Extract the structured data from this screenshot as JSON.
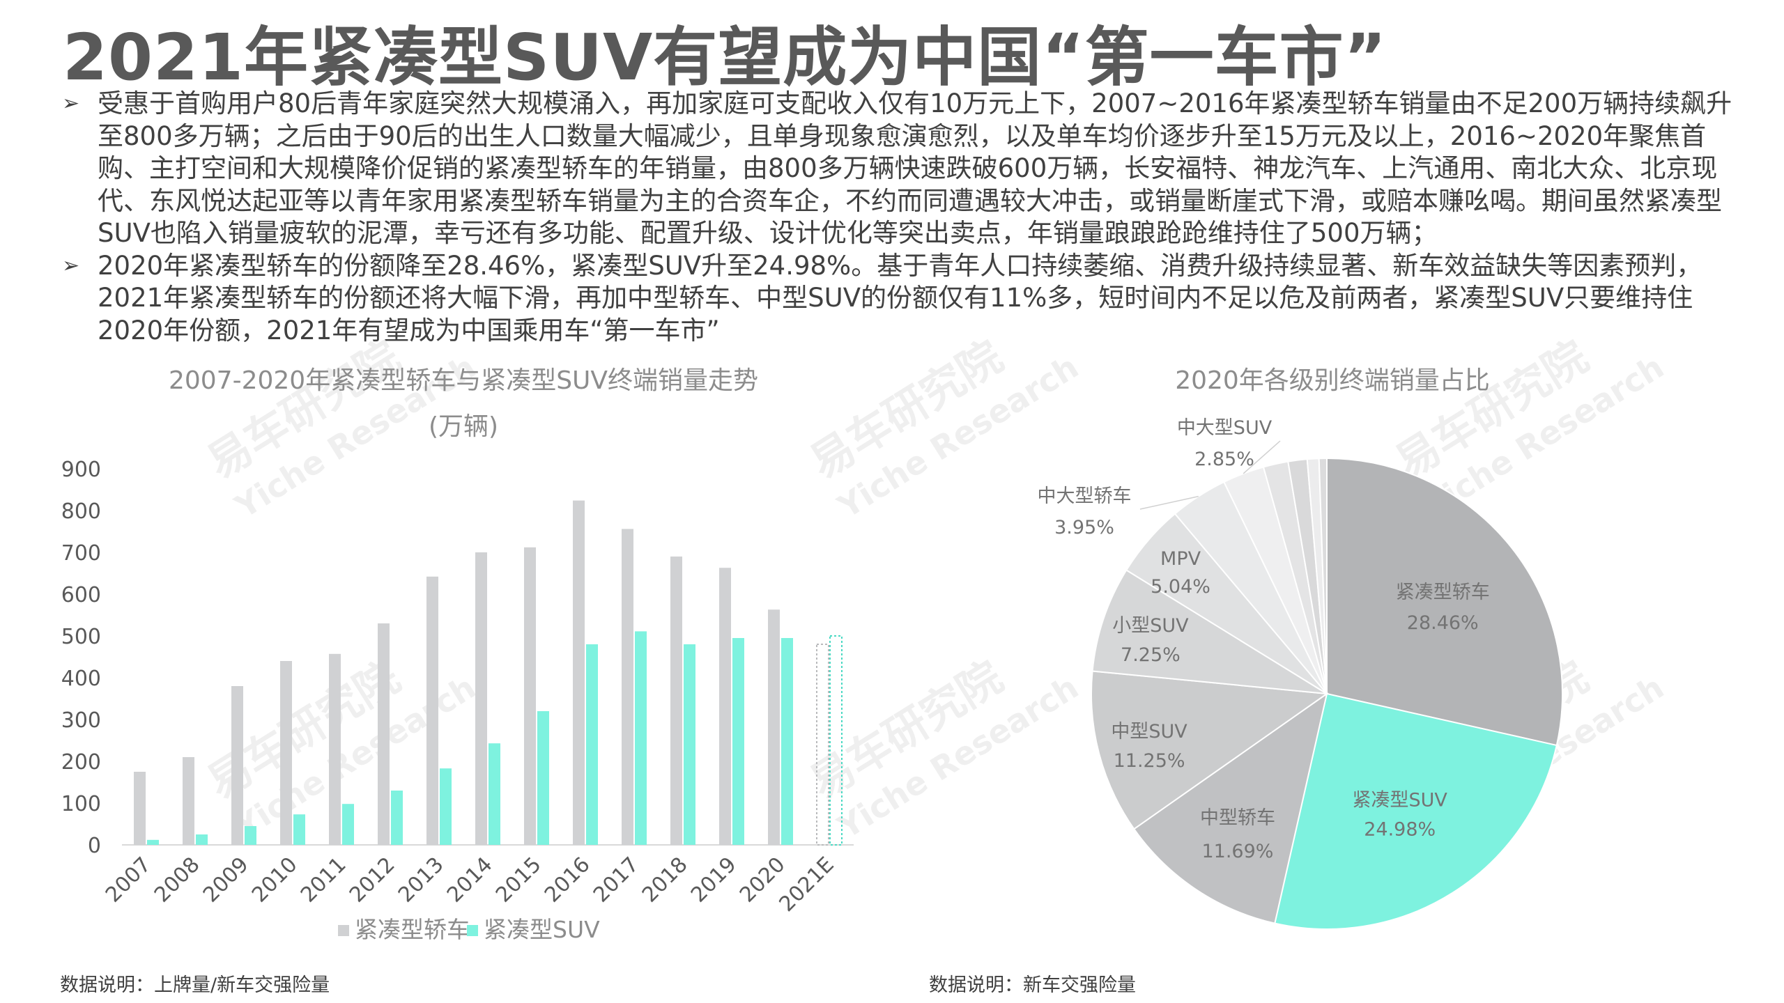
{
  "title": "2021年紧凑型SUV有望成为中国“第一车市”",
  "bullets": [
    "受惠于首购用户80后青年家庭突然大规模涌入，再加家庭可支配收入仅有10万元上下，2007~2016年紧凑型轿车销量由不足200万辆持续飙升至800多万辆；之后由于90后的出生人口数量大幅减少，且单身现象愈演愈烈，以及单车均价逐步升至15万元及以上，2016~2020年聚焦首购、主打空间和大规模降价促销的紧凑型轿车的年销量，由800多万辆快速跌破600万辆，长安福特、神龙汽车、上汽通用、南北大众、北京现代、东风悦达起亚等以青年家用紧凑型轿车销量为主的合资车企，不约而同遭遇较大冲击，或销量断崖式下滑，或赔本赚吆喝。期间虽然紧凑型SUV也陷入销量疲软的泥潭，幸亏还有多功能、配置升级、设计优化等突出卖点，年销量踉踉跄跄维持住了500万辆；",
    "2020年紧凑型轿车的份额降至28.46%，紧凑型SUV升至24.98%。基于青年人口持续萎缩、消费升级持续显著、新车效益缺失等因素预判，2021年紧凑型轿车的份额还将大幅下滑，再加中型轿车、中型SUV的份额仅有11%多，短时间内不足以危及前两者，紧凑型SUV只要维持住2020年份额，2021年有望成为中国乘用车“第一车市”"
  ],
  "watermark": {
    "cn": "易车研究院",
    "en": "Yiche Research"
  },
  "notes": {
    "left": "数据说明：上牌量/新车交强险量",
    "right": "数据说明：新车交强险量"
  },
  "colors": {
    "gray": "#d0d1d3",
    "teal": "#7ef2df",
    "title": "#595959"
  },
  "chart_data": [
    {
      "type": "bar",
      "title": "2007-2020年紧凑型轿车与紧凑型SUV终端销量走势",
      "subtitle": "(万辆)",
      "categories": [
        "2007",
        "2008",
        "2009",
        "2010",
        "2011",
        "2012",
        "2013",
        "2014",
        "2015",
        "2016",
        "2017",
        "2018",
        "2019",
        "2020",
        "2021E"
      ],
      "series": [
        {
          "name": "紧凑型轿车",
          "color": "#d0d1d3",
          "values": [
            175,
            210,
            380,
            440,
            457,
            530,
            642,
            700,
            712,
            824,
            756,
            690,
            663,
            563,
            480
          ]
        },
        {
          "name": "紧凑型SUV",
          "color": "#7ef2df",
          "values": [
            12,
            25,
            45,
            73,
            98,
            130,
            183,
            243,
            320,
            480,
            511,
            480,
            495,
            495,
            500
          ]
        }
      ],
      "projected_category": "2021E",
      "ylim": [
        0,
        900
      ],
      "yticks": [
        0,
        100,
        200,
        300,
        400,
        500,
        600,
        700,
        800,
        900
      ],
      "legend": "bottom",
      "grid": false
    },
    {
      "type": "pie",
      "title": "2020年各级别终端销量占比",
      "slices": [
        {
          "label": "紧凑型轿车",
          "value": 28.46,
          "display": "28.46%",
          "color": "#b3b4b6"
        },
        {
          "label": "紧凑型SUV",
          "value": 24.98,
          "display": "24.98%",
          "color": "#7ef2df"
        },
        {
          "label": "中型轿车",
          "value": 11.69,
          "display": "11.69%",
          "color": "#c0c1c3"
        },
        {
          "label": "中型SUV",
          "value": 11.25,
          "display": "11.25%",
          "color": "#cbcccd"
        },
        {
          "label": "小型SUV",
          "value": 7.25,
          "display": "7.25%",
          "color": "#d6d7d8"
        },
        {
          "label": "MPV",
          "value": 5.04,
          "display": "5.04%",
          "color": "#e0e1e2"
        },
        {
          "label": "中大型轿车",
          "value": 3.95,
          "display": "3.95%",
          "color": "#e9eaeb"
        },
        {
          "label": "中大型SUV",
          "value": 2.85,
          "display": "2.85%",
          "color": "#efeff0"
        },
        {
          "label": "",
          "value": 1.7,
          "color": "#e4e4e5"
        },
        {
          "label": "",
          "value": 1.3,
          "color": "#d9d9da"
        },
        {
          "label": "",
          "value": 0.8,
          "color": "#ececed"
        },
        {
          "label": "",
          "value": 0.53,
          "color": "#dcdcdd"
        }
      ]
    }
  ]
}
